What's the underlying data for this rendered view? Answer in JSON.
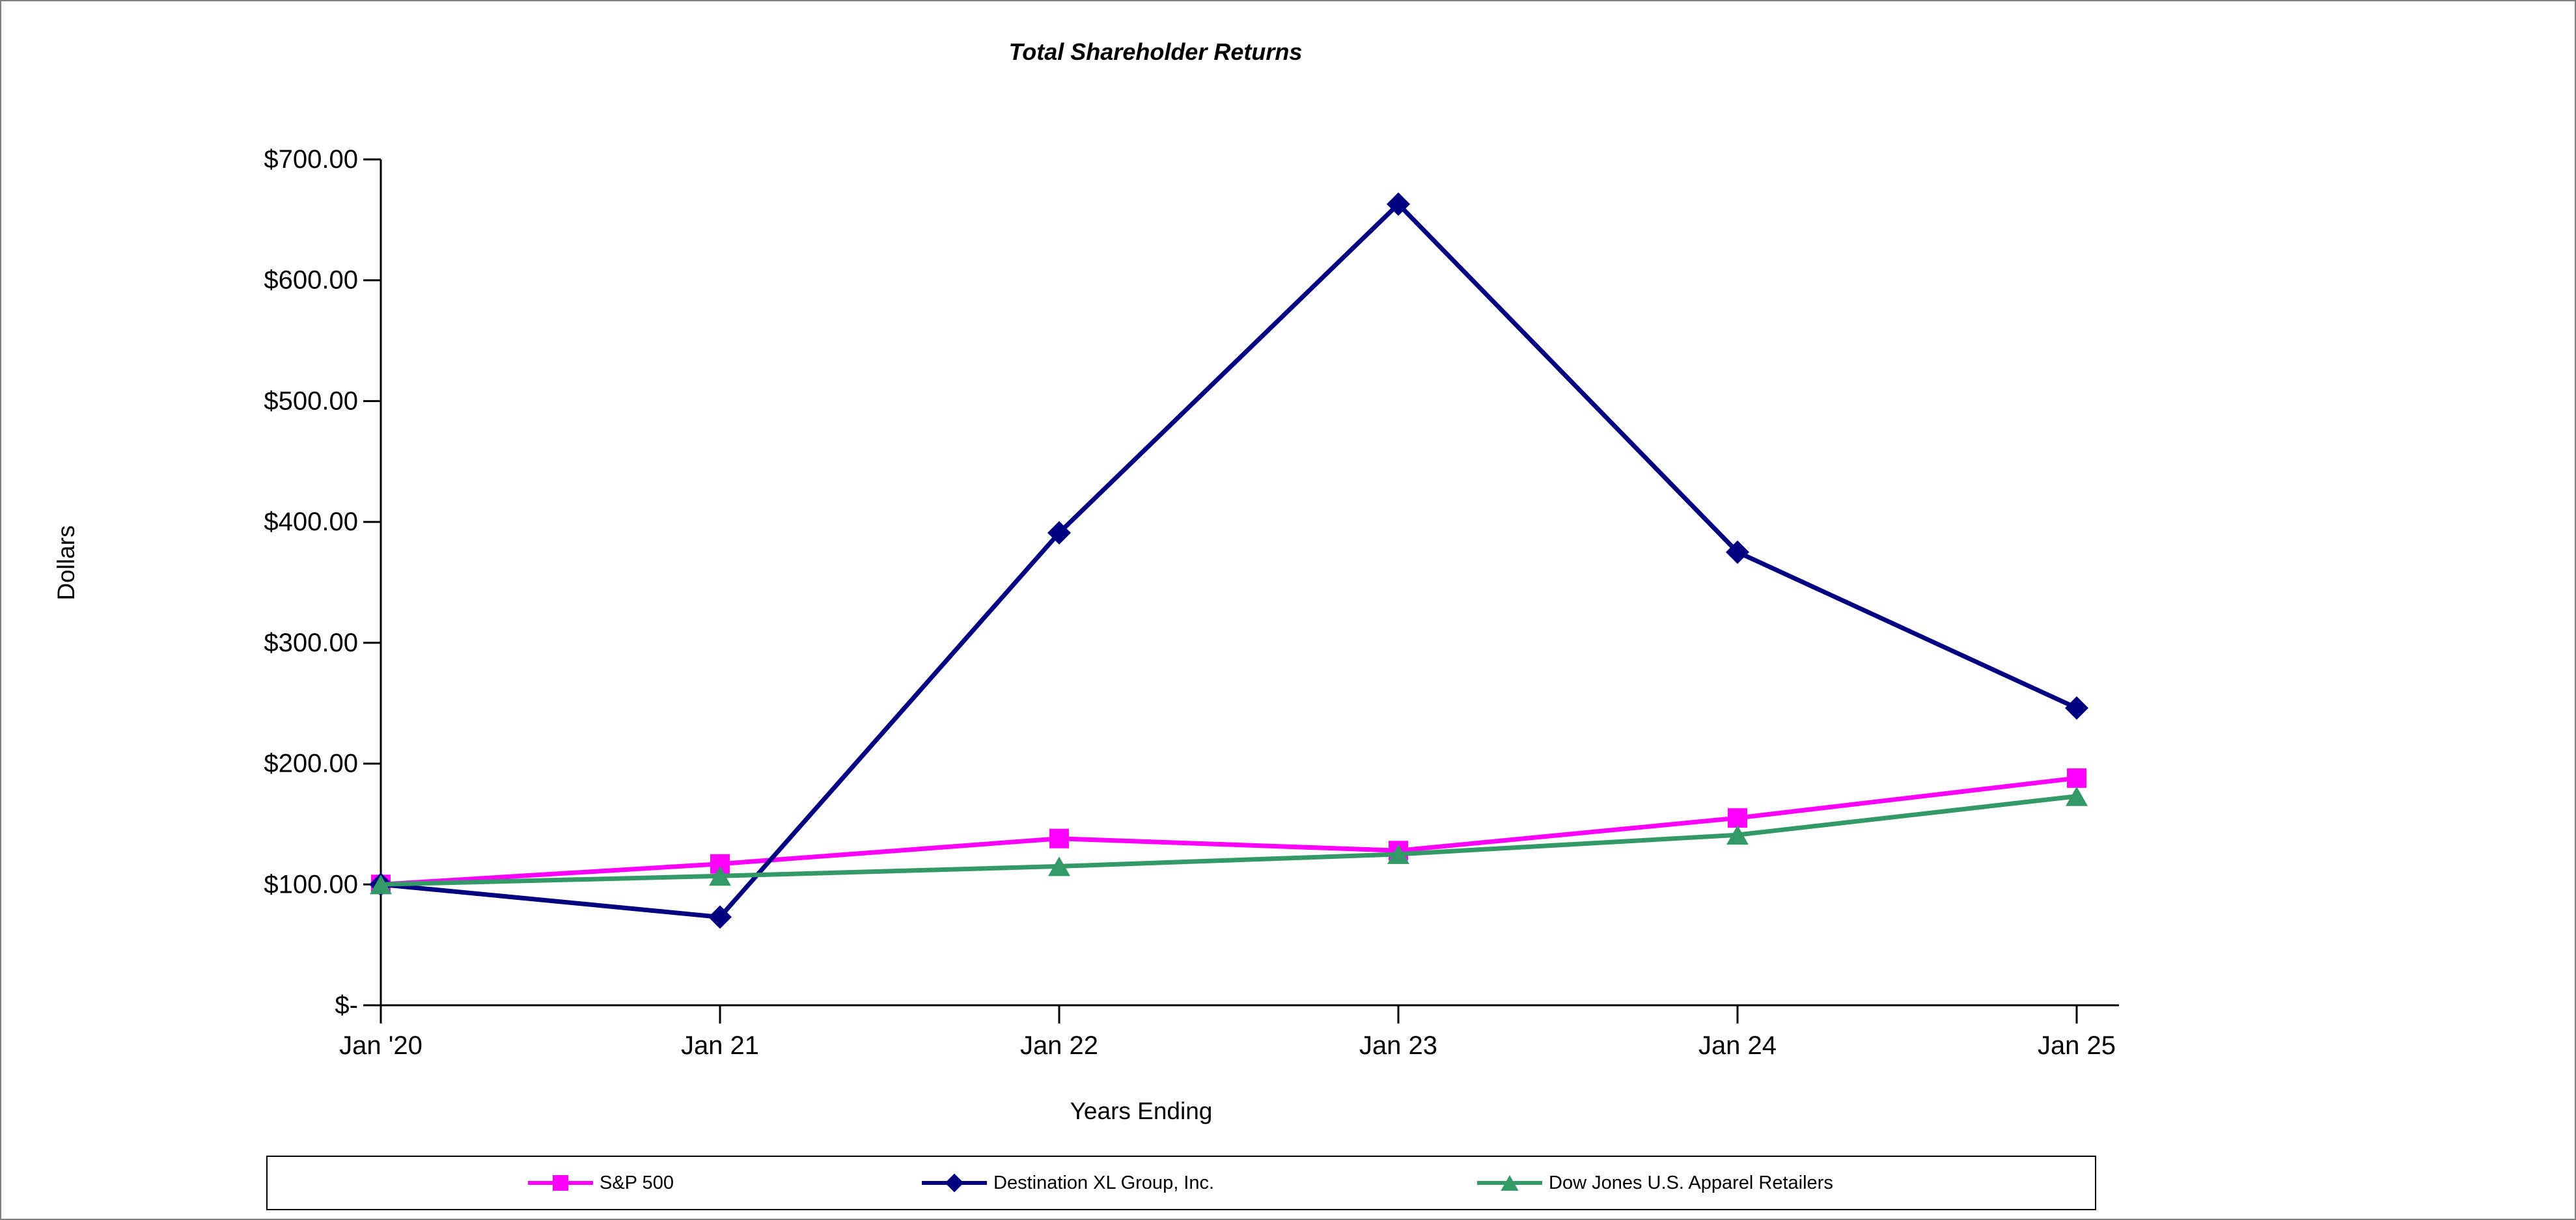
{
  "page": {
    "background_color": "#FFFFFF",
    "frame_border_color": "#808080"
  },
  "chart_data": {
    "type": "line",
    "title": "Total Shareholder Returns",
    "xlabel": "Years Ending",
    "ylabel": "Dollars",
    "categories": [
      "Jan '20",
      "Jan 21",
      "Jan 22",
      "Jan 23",
      "Jan 24",
      "Jan 25"
    ],
    "ylim": [
      0,
      700
    ],
    "y_ticks": [
      {
        "value": 0,
        "label": "$-"
      },
      {
        "value": 100,
        "label": "$100.00"
      },
      {
        "value": 200,
        "label": "$200.00"
      },
      {
        "value": 300,
        "label": "$300.00"
      },
      {
        "value": 400,
        "label": "$400.00"
      },
      {
        "value": 500,
        "label": "$500.00"
      },
      {
        "value": 600,
        "label": "$600.00"
      },
      {
        "value": 700,
        "label": "$700.00"
      }
    ],
    "grid": false,
    "legend_position": "bottom",
    "series": [
      {
        "name": "S&P 500",
        "color": "#FF00FF",
        "marker": "square",
        "values": [
          100,
          117,
          138,
          128,
          155,
          188
        ]
      },
      {
        "name": "Destination XL Group, Inc.",
        "color": "#000080",
        "marker": "diamond",
        "values": [
          100,
          73,
          391,
          663,
          375,
          246
        ]
      },
      {
        "name": "Dow Jones U.S. Apparel Retailers",
        "color": "#339966",
        "marker": "triangle",
        "values": [
          100,
          107,
          115,
          125,
          141,
          173
        ]
      }
    ]
  }
}
